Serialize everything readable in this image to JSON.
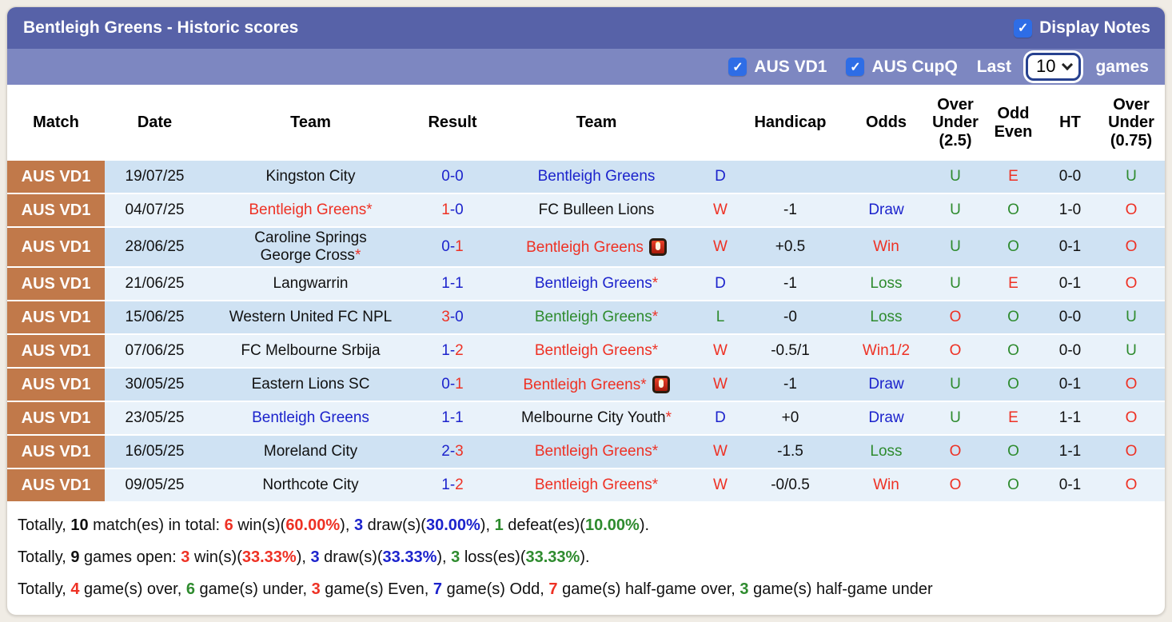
{
  "header": {
    "title": "Bentleigh Greens - Historic scores",
    "display_notes_label": "Display Notes",
    "display_notes_checked": true
  },
  "icons": {
    "check": "✓"
  },
  "filters": {
    "competitions": [
      {
        "label": "AUS VD1",
        "checked": true
      },
      {
        "label": "AUS CupQ",
        "checked": true
      }
    ],
    "last_label": "Last",
    "last_value": "10",
    "games_label": "games"
  },
  "table": {
    "headers": [
      "Match",
      "Date",
      "Team",
      "Result",
      "Team",
      "",
      "Handicap",
      "Odds",
      "Over\nUnder\n(2.5)",
      "Odd\nEven",
      "HT",
      "Over\nUnder\n(0.75)"
    ]
  },
  "rows": [
    {
      "league": "AUS VD1",
      "date": "19/07/25",
      "team1": {
        "name": "Kingston City",
        "color": "k",
        "star": false,
        "card": false
      },
      "result": {
        "s1": "0",
        "c1": "b",
        "s2": "0",
        "c2": "b"
      },
      "team2": {
        "name": "Bentleigh Greens",
        "color": "b",
        "star": false,
        "card": false
      },
      "wdl": {
        "text": "D",
        "color": "b"
      },
      "handicap": "",
      "odds": {
        "text": "",
        "color": "k"
      },
      "ou25": {
        "text": "U",
        "color": "g"
      },
      "oddeven": {
        "text": "E",
        "color": "r"
      },
      "ht": "0-0",
      "ou075": {
        "text": "U",
        "color": "g"
      }
    },
    {
      "league": "AUS VD1",
      "date": "04/07/25",
      "team1": {
        "name": "Bentleigh Greens",
        "color": "r",
        "star": true,
        "card": false
      },
      "result": {
        "s1": "1",
        "c1": "r",
        "s2": "0",
        "c2": "b"
      },
      "team2": {
        "name": "FC Bulleen Lions",
        "color": "k",
        "star": false,
        "card": false
      },
      "wdl": {
        "text": "W",
        "color": "r"
      },
      "handicap": "-1",
      "odds": {
        "text": "Draw",
        "color": "b"
      },
      "ou25": {
        "text": "U",
        "color": "g"
      },
      "oddeven": {
        "text": "O",
        "color": "g"
      },
      "ht": "1-0",
      "ou075": {
        "text": "O",
        "color": "r"
      }
    },
    {
      "league": "AUS VD1",
      "date": "28/06/25",
      "team1": {
        "name": "Caroline Springs\nGeorge Cross",
        "color": "k",
        "star": true,
        "card": false
      },
      "result": {
        "s1": "0",
        "c1": "b",
        "s2": "1",
        "c2": "r"
      },
      "team2": {
        "name": "Bentleigh Greens",
        "color": "r",
        "star": false,
        "card": true
      },
      "wdl": {
        "text": "W",
        "color": "r"
      },
      "handicap": "+0.5",
      "odds": {
        "text": "Win",
        "color": "r"
      },
      "ou25": {
        "text": "U",
        "color": "g"
      },
      "oddeven": {
        "text": "O",
        "color": "g"
      },
      "ht": "0-1",
      "ou075": {
        "text": "O",
        "color": "r"
      }
    },
    {
      "league": "AUS VD1",
      "date": "21/06/25",
      "team1": {
        "name": "Langwarrin",
        "color": "k",
        "star": false,
        "card": false
      },
      "result": {
        "s1": "1",
        "c1": "b",
        "s2": "1",
        "c2": "b"
      },
      "team2": {
        "name": "Bentleigh Greens",
        "color": "b",
        "star": true,
        "card": false
      },
      "wdl": {
        "text": "D",
        "color": "b"
      },
      "handicap": "-1",
      "odds": {
        "text": "Loss",
        "color": "g"
      },
      "ou25": {
        "text": "U",
        "color": "g"
      },
      "oddeven": {
        "text": "E",
        "color": "r"
      },
      "ht": "0-1",
      "ou075": {
        "text": "O",
        "color": "r"
      }
    },
    {
      "league": "AUS VD1",
      "date": "15/06/25",
      "team1": {
        "name": "Western United FC NPL",
        "color": "k",
        "star": false,
        "card": false
      },
      "result": {
        "s1": "3",
        "c1": "r",
        "s2": "0",
        "c2": "b"
      },
      "team2": {
        "name": "Bentleigh Greens",
        "color": "g",
        "star": true,
        "card": false
      },
      "wdl": {
        "text": "L",
        "color": "g"
      },
      "handicap": "-0",
      "odds": {
        "text": "Loss",
        "color": "g"
      },
      "ou25": {
        "text": "O",
        "color": "r"
      },
      "oddeven": {
        "text": "O",
        "color": "g"
      },
      "ht": "0-0",
      "ou075": {
        "text": "U",
        "color": "g"
      }
    },
    {
      "league": "AUS VD1",
      "date": "07/06/25",
      "team1": {
        "name": "FC Melbourne Srbija",
        "color": "k",
        "star": false,
        "card": false
      },
      "result": {
        "s1": "1",
        "c1": "b",
        "s2": "2",
        "c2": "r"
      },
      "team2": {
        "name": "Bentleigh Greens",
        "color": "r",
        "star": true,
        "card": false
      },
      "wdl": {
        "text": "W",
        "color": "r"
      },
      "handicap": "-0.5/1",
      "odds": {
        "text": "Win1/2",
        "color": "r"
      },
      "ou25": {
        "text": "O",
        "color": "r"
      },
      "oddeven": {
        "text": "O",
        "color": "g"
      },
      "ht": "0-0",
      "ou075": {
        "text": "U",
        "color": "g"
      }
    },
    {
      "league": "AUS VD1",
      "date": "30/05/25",
      "team1": {
        "name": "Eastern Lions SC",
        "color": "k",
        "star": false,
        "card": false
      },
      "result": {
        "s1": "0",
        "c1": "b",
        "s2": "1",
        "c2": "r"
      },
      "team2": {
        "name": "Bentleigh Greens",
        "color": "r",
        "star": true,
        "card": true
      },
      "wdl": {
        "text": "W",
        "color": "r"
      },
      "handicap": "-1",
      "odds": {
        "text": "Draw",
        "color": "b"
      },
      "ou25": {
        "text": "U",
        "color": "g"
      },
      "oddeven": {
        "text": "O",
        "color": "g"
      },
      "ht": "0-1",
      "ou075": {
        "text": "O",
        "color": "r"
      }
    },
    {
      "league": "AUS VD1",
      "date": "23/05/25",
      "team1": {
        "name": "Bentleigh Greens",
        "color": "b",
        "star": false,
        "card": false
      },
      "result": {
        "s1": "1",
        "c1": "b",
        "s2": "1",
        "c2": "b"
      },
      "team2": {
        "name": "Melbourne City Youth",
        "color": "k",
        "star": true,
        "card": false
      },
      "wdl": {
        "text": "D",
        "color": "b"
      },
      "handicap": "+0",
      "odds": {
        "text": "Draw",
        "color": "b"
      },
      "ou25": {
        "text": "U",
        "color": "g"
      },
      "oddeven": {
        "text": "E",
        "color": "r"
      },
      "ht": "1-1",
      "ou075": {
        "text": "O",
        "color": "r"
      }
    },
    {
      "league": "AUS VD1",
      "date": "16/05/25",
      "team1": {
        "name": "Moreland City",
        "color": "k",
        "star": false,
        "card": false
      },
      "result": {
        "s1": "2",
        "c1": "b",
        "s2": "3",
        "c2": "r"
      },
      "team2": {
        "name": "Bentleigh Greens",
        "color": "r",
        "star": true,
        "card": false
      },
      "wdl": {
        "text": "W",
        "color": "r"
      },
      "handicap": "-1.5",
      "odds": {
        "text": "Loss",
        "color": "g"
      },
      "ou25": {
        "text": "O",
        "color": "r"
      },
      "oddeven": {
        "text": "O",
        "color": "g"
      },
      "ht": "1-1",
      "ou075": {
        "text": "O",
        "color": "r"
      }
    },
    {
      "league": "AUS VD1",
      "date": "09/05/25",
      "team1": {
        "name": "Northcote City",
        "color": "k",
        "star": false,
        "card": false
      },
      "result": {
        "s1": "1",
        "c1": "b",
        "s2": "2",
        "c2": "r"
      },
      "team2": {
        "name": "Bentleigh Greens",
        "color": "r",
        "star": true,
        "card": false
      },
      "wdl": {
        "text": "W",
        "color": "r"
      },
      "handicap": "-0/0.5",
      "odds": {
        "text": "Win",
        "color": "r"
      },
      "ou25": {
        "text": "O",
        "color": "r"
      },
      "oddeven": {
        "text": "O",
        "color": "g"
      },
      "ht": "0-1",
      "ou075": {
        "text": "O",
        "color": "r"
      }
    }
  ],
  "summary": {
    "lines": [
      [
        {
          "t": "Totally, ",
          "c": "k",
          "b": false
        },
        {
          "t": "10",
          "c": "k",
          "b": true
        },
        {
          "t": " match(es) in total: ",
          "c": "k",
          "b": false
        },
        {
          "t": "6",
          "c": "r",
          "b": true
        },
        {
          "t": " win(s)(",
          "c": "k",
          "b": false
        },
        {
          "t": "60.00%",
          "c": "r",
          "b": true
        },
        {
          "t": "), ",
          "c": "k",
          "b": false
        },
        {
          "t": "3",
          "c": "b",
          "b": true
        },
        {
          "t": " draw(s)(",
          "c": "k",
          "b": false
        },
        {
          "t": "30.00%",
          "c": "b",
          "b": true
        },
        {
          "t": "), ",
          "c": "k",
          "b": false
        },
        {
          "t": "1",
          "c": "g",
          "b": true
        },
        {
          "t": " defeat(es)(",
          "c": "k",
          "b": false
        },
        {
          "t": "10.00%",
          "c": "g",
          "b": true
        },
        {
          "t": ").",
          "c": "k",
          "b": false
        }
      ],
      [
        {
          "t": "Totally, ",
          "c": "k",
          "b": false
        },
        {
          "t": "9",
          "c": "k",
          "b": true
        },
        {
          "t": " games open: ",
          "c": "k",
          "b": false
        },
        {
          "t": "3",
          "c": "r",
          "b": true
        },
        {
          "t": " win(s)(",
          "c": "k",
          "b": false
        },
        {
          "t": "33.33%",
          "c": "r",
          "b": true
        },
        {
          "t": "), ",
          "c": "k",
          "b": false
        },
        {
          "t": "3",
          "c": "b",
          "b": true
        },
        {
          "t": " draw(s)(",
          "c": "k",
          "b": false
        },
        {
          "t": "33.33%",
          "c": "b",
          "b": true
        },
        {
          "t": "), ",
          "c": "k",
          "b": false
        },
        {
          "t": "3",
          "c": "g",
          "b": true
        },
        {
          "t": " loss(es)(",
          "c": "k",
          "b": false
        },
        {
          "t": "33.33%",
          "c": "g",
          "b": true
        },
        {
          "t": ").",
          "c": "k",
          "b": false
        }
      ],
      [
        {
          "t": "Totally, ",
          "c": "k",
          "b": false
        },
        {
          "t": "4",
          "c": "r",
          "b": true
        },
        {
          "t": " game(s) over, ",
          "c": "k",
          "b": false
        },
        {
          "t": "6",
          "c": "g",
          "b": true
        },
        {
          "t": " game(s) under, ",
          "c": "k",
          "b": false
        },
        {
          "t": "3",
          "c": "r",
          "b": true
        },
        {
          "t": " game(s) Even, ",
          "c": "k",
          "b": false
        },
        {
          "t": "7",
          "c": "b",
          "b": true
        },
        {
          "t": " game(s) Odd, ",
          "c": "k",
          "b": false
        },
        {
          "t": "7",
          "c": "r",
          "b": true
        },
        {
          "t": " game(s) half-game over, ",
          "c": "k",
          "b": false
        },
        {
          "t": "3",
          "c": "g",
          "b": true
        },
        {
          "t": " game(s) half-game under",
          "c": "k",
          "b": false
        }
      ]
    ]
  },
  "colors": {
    "bar1": "#5762a8",
    "bar2": "#7d87c1",
    "badge": "#c1794a",
    "row_odd": "#cfe2f3",
    "row_even": "#e9f2fa",
    "red": "#ee3124",
    "blue": "#1c23cc",
    "green": "#2e8b2e",
    "checkbox_blue": "#2e6de6"
  }
}
